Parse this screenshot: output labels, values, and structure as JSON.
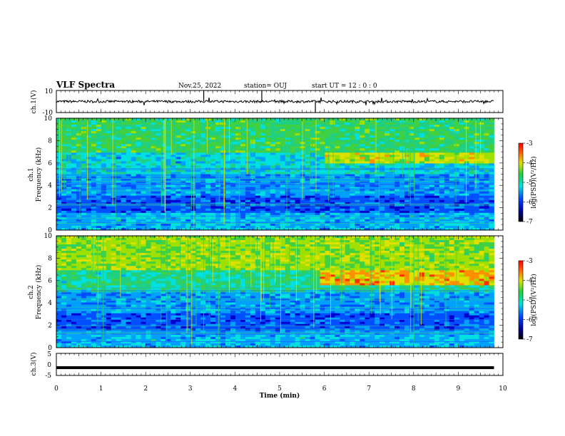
{
  "header": {
    "title": "VLF Spectra",
    "date": "Nov.25, 2022",
    "station": "station= OUJ",
    "start": "start UT = 12 : 0 : 0"
  },
  "colors": {
    "axes": "#000000",
    "signal": "#000000",
    "spectrogram_low": "#000000",
    "spectrogram_high": "#ff0000"
  },
  "chart_data": [
    {
      "type": "line",
      "panel": "ch1-waveform",
      "ylabel": "ch.1(V)",
      "ylim": [
        -10,
        10
      ],
      "yticks": [
        "10",
        "-10"
      ],
      "x_range_min": [
        0,
        9.8
      ],
      "description_level_V": 0
    },
    {
      "type": "heatmap",
      "panel": "ch1-spectrogram",
      "ylabel_line1": "ch.1",
      "ylabel_line2": "Frequency (kHz)",
      "ylim": [
        0,
        10
      ],
      "yticks": [
        "0",
        "2",
        "4",
        "6",
        "8",
        "10"
      ],
      "x_range_min": [
        0,
        9.8
      ],
      "emission_band_kHz": [
        6,
        7
      ],
      "emission_start_min": 6.0,
      "colorbar": {
        "label": "log(PSD)(V²/Hz)",
        "range": [
          -7,
          -3
        ],
        "ticks": [
          "-3",
          "-4",
          "-5",
          "-6",
          "-7"
        ]
      }
    },
    {
      "type": "heatmap",
      "panel": "ch2-spectrogram",
      "ylabel_line1": "ch.2",
      "ylabel_line2": "Frequency (kHz)",
      "ylim": [
        0,
        10
      ],
      "yticks": [
        "0",
        "2",
        "4",
        "6",
        "8",
        "10"
      ],
      "x_range_min": [
        0,
        9.8
      ],
      "emission_band_kHz": [
        5.5,
        7
      ],
      "emission_start_min": 5.9,
      "colorbar": {
        "label": "log(PSD)(V²/Hz)",
        "range": [
          -7,
          -3
        ],
        "ticks": [
          "-3",
          "-4",
          "-5",
          "-6",
          "-7"
        ]
      }
    },
    {
      "type": "line",
      "panel": "ch3-waveform",
      "ylabel": "ch.3(V)",
      "ylim": [
        -5,
        5
      ],
      "yticks": [
        "5",
        "0",
        "-5"
      ],
      "x_range_min": [
        0,
        9.8
      ],
      "level_V": -1.5
    }
  ],
  "xaxis": {
    "label": "Time (min)",
    "range": [
      0,
      10
    ],
    "ticks": [
      "0",
      "1",
      "2",
      "3",
      "4",
      "5",
      "6",
      "7",
      "8",
      "9",
      "10"
    ]
  }
}
